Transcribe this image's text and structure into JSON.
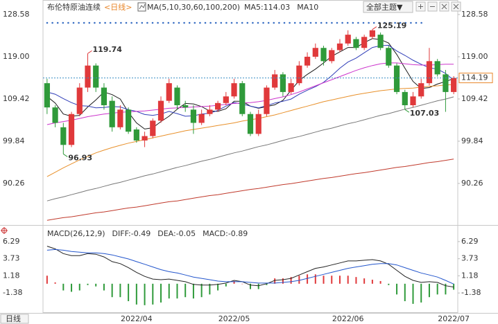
{
  "header": {
    "title": "布伦特原油连续",
    "period": "<日线>",
    "ma_label": "MA(5,10,30,60,100,200)",
    "theme_button": "全部主题▼"
  },
  "chart_data": [
    {
      "type": "candlestick",
      "categories": [
        null,
        null,
        null,
        null,
        null,
        null,
        null,
        null,
        null,
        null,
        null,
        "2022/04",
        null,
        null,
        null,
        null,
        null,
        null,
        null,
        null,
        null,
        null,
        null,
        "2022/05",
        null,
        null,
        null,
        null,
        null,
        null,
        null,
        null,
        null,
        null,
        null,
        null,
        null,
        "2022/06",
        null,
        null,
        null,
        null,
        null,
        null,
        null,
        null,
        null,
        null,
        null,
        null,
        "2022/07"
      ],
      "open": [
        113,
        107.5,
        103,
        99,
        106,
        112,
        117,
        112,
        109,
        103,
        107,
        102.5,
        100,
        101,
        104.5,
        109,
        112,
        108,
        107,
        104,
        106,
        107,
        108.5,
        110,
        113,
        106,
        101.5,
        106,
        112,
        115,
        111,
        113,
        117,
        119,
        121,
        118,
        120.5,
        122,
        123,
        121,
        123.5,
        124,
        121,
        117,
        111,
        108,
        110,
        113,
        118,
        115,
        111
      ],
      "high": [
        114,
        108,
        104,
        106.5,
        113,
        119.74,
        117.5,
        113,
        110,
        108,
        107.5,
        103,
        102,
        105,
        110,
        114,
        112.5,
        109,
        108,
        107,
        108,
        109,
        111,
        114,
        113.5,
        106.5,
        107,
        112.5,
        116,
        115.5,
        114,
        118,
        120,
        122,
        121.5,
        121,
        123,
        125,
        123.5,
        124,
        125.19,
        124.5,
        121.5,
        117.5,
        111.5,
        111,
        114,
        121,
        118.5,
        116,
        114.6
      ],
      "low": [
        106,
        103,
        96.93,
        98.5,
        105.5,
        111,
        111,
        107,
        102,
        102.5,
        101.5,
        99.5,
        98.5,
        100.5,
        104,
        108.5,
        107,
        106.5,
        101.5,
        103.5,
        105.5,
        106.5,
        108,
        109.5,
        105.5,
        101,
        101,
        105.5,
        111.5,
        110,
        110.5,
        112.5,
        116.5,
        118.5,
        117,
        117.5,
        120,
        121.5,
        120.5,
        120.5,
        123,
        120.5,
        116.5,
        110.5,
        107.03,
        107.5,
        109.5,
        112.5,
        114.5,
        106.5,
        110.5
      ],
      "close": [
        107.5,
        104,
        99,
        106,
        112,
        117,
        112,
        108,
        103,
        107,
        102,
        100,
        101,
        104.5,
        109,
        113,
        108,
        107.5,
        104,
        106,
        107,
        108.5,
        110,
        113,
        106,
        101.5,
        106,
        112,
        115,
        111,
        113,
        117,
        119,
        121,
        118,
        120.5,
        122,
        124,
        121,
        123.5,
        125,
        121,
        117,
        111,
        108,
        110,
        113,
        118,
        115,
        111,
        114.19
      ],
      "up_color": "#e0393b",
      "down_color": "#2f9a3a",
      "series": [
        {
          "label": "MA5:114.03",
          "color": "#1a1a1a",
          "values": [
            110,
            108.5,
            106,
            105.5,
            105.7,
            107.6,
            109.2,
            111,
            110.4,
            109.4,
            106.4,
            104,
            102.6,
            102.9,
            104.3,
            105.5,
            107.1,
            108.4,
            108.3,
            107.7,
            106.7,
            106.6,
            107.2,
            108.9,
            108.9,
            107.8,
            107.3,
            107.7,
            108.1,
            109.1,
            111.4,
            113.6,
            115,
            116.2,
            117.6,
            119.1,
            120.1,
            121.1,
            121.1,
            122.2,
            123.1,
            122.9,
            122.1,
            119.5,
            116.4,
            113.4,
            111.8,
            112,
            112.8,
            113.4,
            114.03
          ]
        },
        {
          "label": "MA10",
          "color": "#2f3db8",
          "values": [
            111,
            110.5,
            109.5,
            108.6,
            107.9,
            107.8,
            107.4,
            107.5,
            107.7,
            107.6,
            107,
            106.6,
            105.9,
            105.7,
            106,
            106.6,
            106.1,
            105.5,
            105.6,
            106,
            106.2,
            106.8,
            107.8,
            108.6,
            108.3,
            107.8,
            107.4,
            107.9,
            108.5,
            108.9,
            109.4,
            110.5,
            111.4,
            112.2,
            113.2,
            114.7,
            116.4,
            117.8,
            118.7,
            119.9,
            121.1,
            121.5,
            121.6,
            120.3,
            119.3,
            118.2,
            117.3,
            116.5,
            116.2,
            115.2,
            113.7
          ]
        },
        {
          "color": "#cc33cc",
          "values": [
            103.6,
            104.0,
            104.3,
            104.6,
            105.0,
            105.4,
            105.7,
            106.0,
            106.2,
            106.4,
            106.5,
            106.6,
            106.7,
            106.9,
            107.1,
            107.3,
            107.4,
            107.5,
            107.6,
            107.7,
            107.8,
            108.0,
            108.2,
            108.4,
            108.5,
            108.6,
            108.8,
            109.1,
            109.5,
            109.9,
            110.4,
            111.0,
            111.7,
            112.4,
            113.1,
            113.8,
            114.5,
            115.2,
            115.9,
            116.5,
            117.0,
            117.4,
            117.6,
            117.6,
            117.4,
            117.2,
            117.1,
            117.1,
            117.2,
            117.3,
            117.3
          ]
        },
        {
          "color": "#e8902a",
          "values": [
            91.8,
            92.8,
            93.8,
            94.7,
            95.6,
            96.4,
            97.2,
            97.8,
            98.4,
            98.9,
            99.4,
            99.8,
            100.2,
            100.6,
            101.0,
            101.4,
            101.8,
            102.2,
            102.5,
            102.8,
            103.1,
            103.4,
            103.7,
            104.0,
            104.4,
            104.7,
            105.0,
            105.4,
            105.8,
            106.3,
            106.8,
            107.3,
            107.8,
            108.3,
            108.8,
            109.2,
            109.6,
            110.0,
            110.4,
            110.7,
            111.0,
            111.3,
            111.5,
            111.7,
            111.8,
            111.9,
            112.1,
            112.3,
            112.4,
            112.6,
            112.7
          ]
        },
        {
          "color": "#777777",
          "values": [
            86.3,
            86.8,
            87.2,
            87.7,
            88.2,
            88.7,
            89.1,
            89.6,
            90.1,
            90.5,
            91.0,
            91.5,
            92.0,
            92.4,
            92.9,
            93.4,
            93.9,
            94.3,
            94.8,
            95.3,
            95.7,
            96.2,
            96.7,
            97.2,
            97.6,
            98.1,
            98.6,
            99.0,
            99.5,
            100.0,
            100.5,
            100.9,
            101.4,
            101.9,
            102.4,
            102.8,
            103.3,
            103.8,
            104.2,
            104.7,
            105.2,
            105.7,
            106.1,
            106.6,
            107.1,
            107.5,
            108.0,
            108.5,
            109.0,
            109.4,
            109.9
          ]
        },
        {
          "color": "#c0392b",
          "values": [
            81.9,
            82.2,
            82.5,
            82.7,
            83.0,
            83.3,
            83.6,
            83.8,
            84.1,
            84.4,
            84.7,
            84.9,
            85.2,
            85.5,
            85.8,
            86.1,
            86.3,
            86.6,
            86.9,
            87.2,
            87.5,
            87.7,
            88.0,
            88.3,
            88.6,
            88.9,
            89.1,
            89.4,
            89.7,
            90.0,
            90.2,
            90.5,
            90.8,
            91.1,
            91.4,
            91.6,
            91.9,
            92.2,
            92.5,
            92.7,
            93.0,
            93.3,
            93.6,
            93.9,
            94.1,
            94.4,
            94.7,
            95.0,
            95.2,
            95.5,
            95.8
          ]
        }
      ],
      "annotations": [
        119.74,
        96.93,
        125.19,
        107.03
      ],
      "last_price": 114.19,
      "last_price_color": "#e8862a",
      "ylim": [
        81.3,
        130.3
      ],
      "yticks": [
        128.58,
        {
          "value": 119,
          "label": "119.00"
        },
        109.42,
        99.84,
        90.26
      ]
    },
    {
      "type": "macd",
      "title": "MACD(26,12,9)",
      "series": [
        {
          "label": "DIFF:-0.49",
          "color": "#222222",
          "values": [
            5.6,
            5.2,
            4.5,
            4.2,
            4.2,
            4.5,
            4.4,
            4.0,
            3.3,
            3.0,
            2.4,
            1.7,
            1.1,
            0.7,
            0.6,
            0.7,
            0.5,
            0.3,
            -0.1,
            -0.2,
            -0.2,
            -0.1,
            0.1,
            0.5,
            0.3,
            -0.2,
            -0.3,
            0.0,
            0.5,
            0.6,
            0.8,
            1.3,
            1.8,
            2.3,
            2.5,
            2.8,
            3.1,
            3.4,
            3.4,
            3.5,
            3.6,
            3.4,
            2.9,
            2.0,
            1.1,
            0.5,
            0.2,
            0.3,
            0.2,
            -0.3,
            -0.49
          ]
        },
        {
          "label": "DEA:-0.05",
          "color": "#2255cc",
          "values": [
            5.0,
            5.1,
            5.0,
            4.8,
            4.7,
            4.6,
            4.6,
            4.5,
            4.3,
            4.0,
            3.7,
            3.3,
            2.9,
            2.5,
            2.1,
            1.8,
            1.6,
            1.3,
            1.0,
            0.8,
            0.6,
            0.4,
            0.3,
            0.3,
            0.3,
            0.2,
            0.1,
            0.1,
            0.1,
            0.2,
            0.3,
            0.5,
            0.8,
            1.1,
            1.4,
            1.7,
            2.0,
            2.3,
            2.5,
            2.7,
            2.9,
            3.0,
            3.0,
            2.8,
            2.4,
            2.0,
            1.6,
            1.3,
            1.0,
            0.5,
            -0.05
          ]
        }
      ],
      "histogram": {
        "label": "MACD:-0.89",
        "color": "#cc33cc",
        "up_color": "#e0393b",
        "down_color": "#2f9a3a",
        "values": [
          1.2,
          0.2,
          -1.0,
          -1.2,
          -1.0,
          -0.2,
          -0.4,
          -1.0,
          -2.0,
          -2.0,
          -2.6,
          -3.1,
          -3.2,
          -3.1,
          -2.8,
          -2.2,
          -2.2,
          -2.0,
          -2.2,
          -2.0,
          -1.6,
          -1.0,
          -0.4,
          0.4,
          0.0,
          -0.8,
          -0.8,
          -0.2,
          0.8,
          0.8,
          1.0,
          1.2,
          1.4,
          1.4,
          1.2,
          1.2,
          1.2,
          1.2,
          1.0,
          0.8,
          0.6,
          0.4,
          -0.2,
          -1.6,
          -2.6,
          -3.0,
          -2.8,
          -2.0,
          -1.6,
          -1.6,
          -0.89
        ]
      },
      "ylim": [
        -3.63,
        7.21
      ],
      "yticks": [
        6.29,
        3.73,
        1.18,
        -1.38
      ]
    }
  ],
  "footer": {
    "period_button": "日线"
  }
}
